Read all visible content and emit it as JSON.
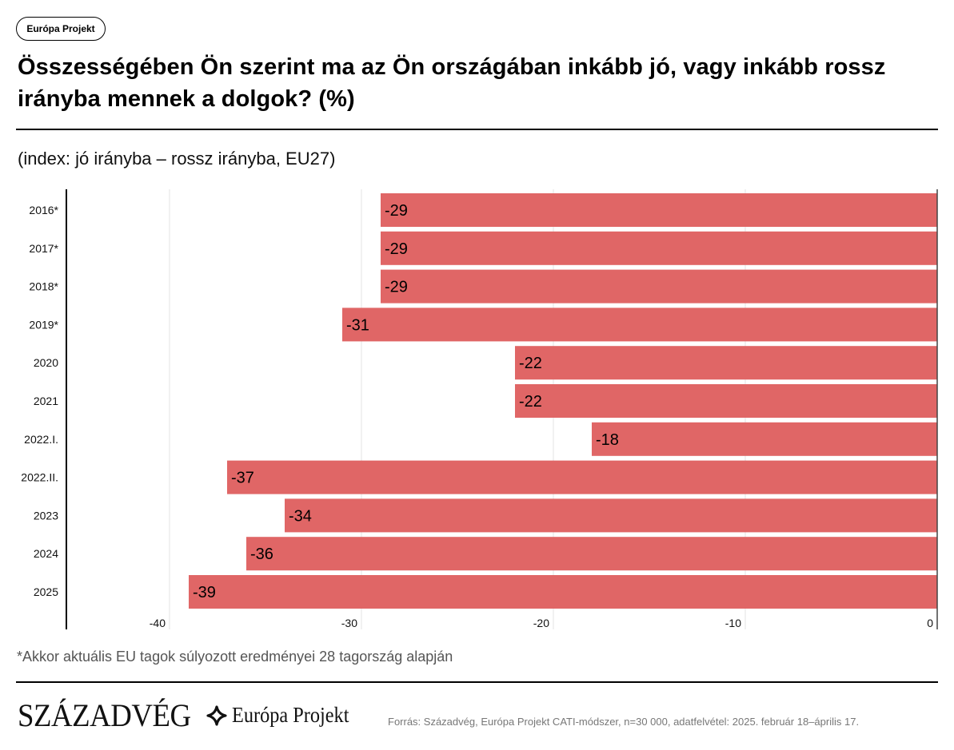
{
  "badge": {
    "label": "Európa Projekt"
  },
  "header": {
    "title": "Összességében Ön szerint ma az Ön országában inkább jó, vagy inkább rossz irányba mennek a dolgok? (%)",
    "subtitle": "(index: jó irányba – rossz irányba, EU27)"
  },
  "footer": {
    "footnote": "*Akkor aktuális EU tagok súlyozott eredményei 28 tagország alapján",
    "logo_primary": "SZÁZADVÉG",
    "logo_secondary": "Európa Projekt",
    "logo_secondary_icon": "four-point-star-icon",
    "source": "Forrás: Századvég, Európa Projekt CATI-módszer, n=30 000, adatfelvétel: 2025. február 18–április 17."
  },
  "chart_data": {
    "type": "bar",
    "orientation": "horizontal",
    "title": "Összességében Ön szerint ma az Ön országában inkább jó, vagy inkább rossz irányba mennek a dolgok? (%)",
    "subtitle": "(index: jó irányba – rossz irányba, EU27)",
    "xlabel": "",
    "ylabel": "",
    "categories": [
      "2016*",
      "2017*",
      "2018*",
      "2019*",
      "2020",
      "2021",
      "2022.I.",
      "2022.II.",
      "2023",
      "2024",
      "2025"
    ],
    "values": [
      -29,
      -29,
      -29,
      -31,
      -22,
      -22,
      -18,
      -37,
      -34,
      -36,
      -39
    ],
    "data_labels": [
      "-29",
      "-29",
      "-29",
      "-31",
      "-22",
      "-22",
      "-18",
      "-37",
      "-34",
      "-36",
      "-39"
    ],
    "xlim": [
      -45,
      0
    ],
    "xticks": [
      -40,
      -30,
      -20,
      -10,
      0
    ],
    "xtick_labels": [
      "-40",
      "-30",
      "-20",
      "-10",
      "0"
    ],
    "grid": true,
    "legend": "none",
    "bar_color": "#E06666"
  }
}
